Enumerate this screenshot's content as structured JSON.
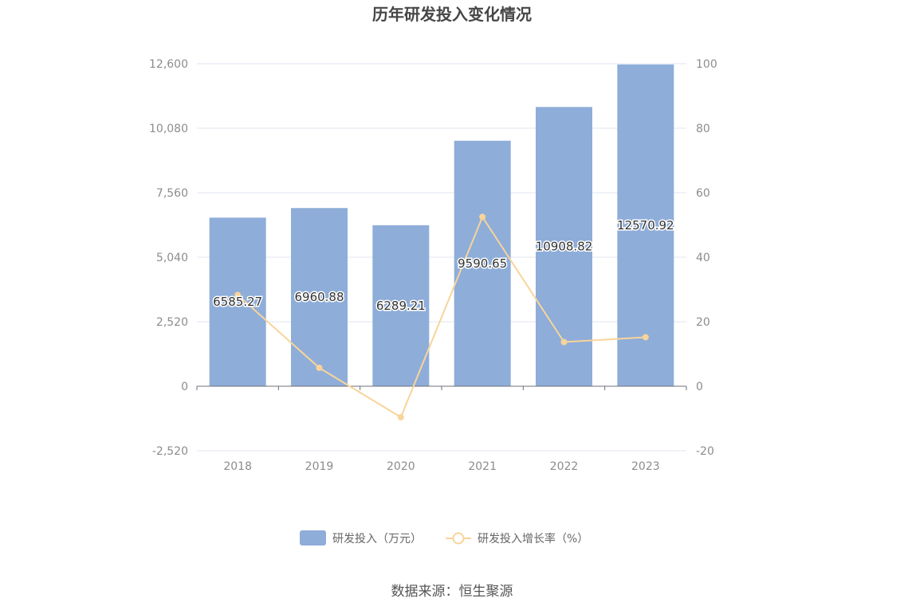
{
  "chart_data": {
    "type": "bar",
    "title": "历年研发投入变化情况",
    "categories": [
      "2018",
      "2019",
      "2020",
      "2021",
      "2022",
      "2023"
    ],
    "series": [
      {
        "name": "研发投入（万元）",
        "type": "bar",
        "axis": "left",
        "values": [
          6585.27,
          6960.88,
          6289.21,
          9590.65,
          10908.82,
          12570.92
        ],
        "labels": [
          "6585.27",
          "6960.88",
          "6289.21",
          "9590.65",
          "10908.82",
          "12570.92"
        ],
        "color": "#8eadd9"
      },
      {
        "name": "研发投入增长率（%）",
        "type": "line",
        "axis": "right",
        "values": [
          28.3,
          5.7,
          -9.6,
          52.5,
          13.7,
          15.2
        ],
        "color": "#f8d49a"
      }
    ],
    "left_axis": {
      "ylim": [
        -2520,
        12600
      ],
      "ticks": [
        -2520,
        0,
        2520,
        5040,
        7560,
        10080,
        12600
      ],
      "tick_labels": [
        "-2,520",
        "0",
        "2,520",
        "5,040",
        "7,560",
        "10,080",
        "12,600"
      ]
    },
    "right_axis": {
      "ylim": [
        -20,
        100
      ],
      "ticks": [
        -20,
        0,
        20,
        40,
        60,
        80,
        100
      ],
      "tick_labels": [
        "-20",
        "0",
        "20",
        "40",
        "60",
        "80",
        "100"
      ]
    },
    "grid": true,
    "legend_position": "bottom"
  },
  "source_text": "数据来源：恒生聚源"
}
